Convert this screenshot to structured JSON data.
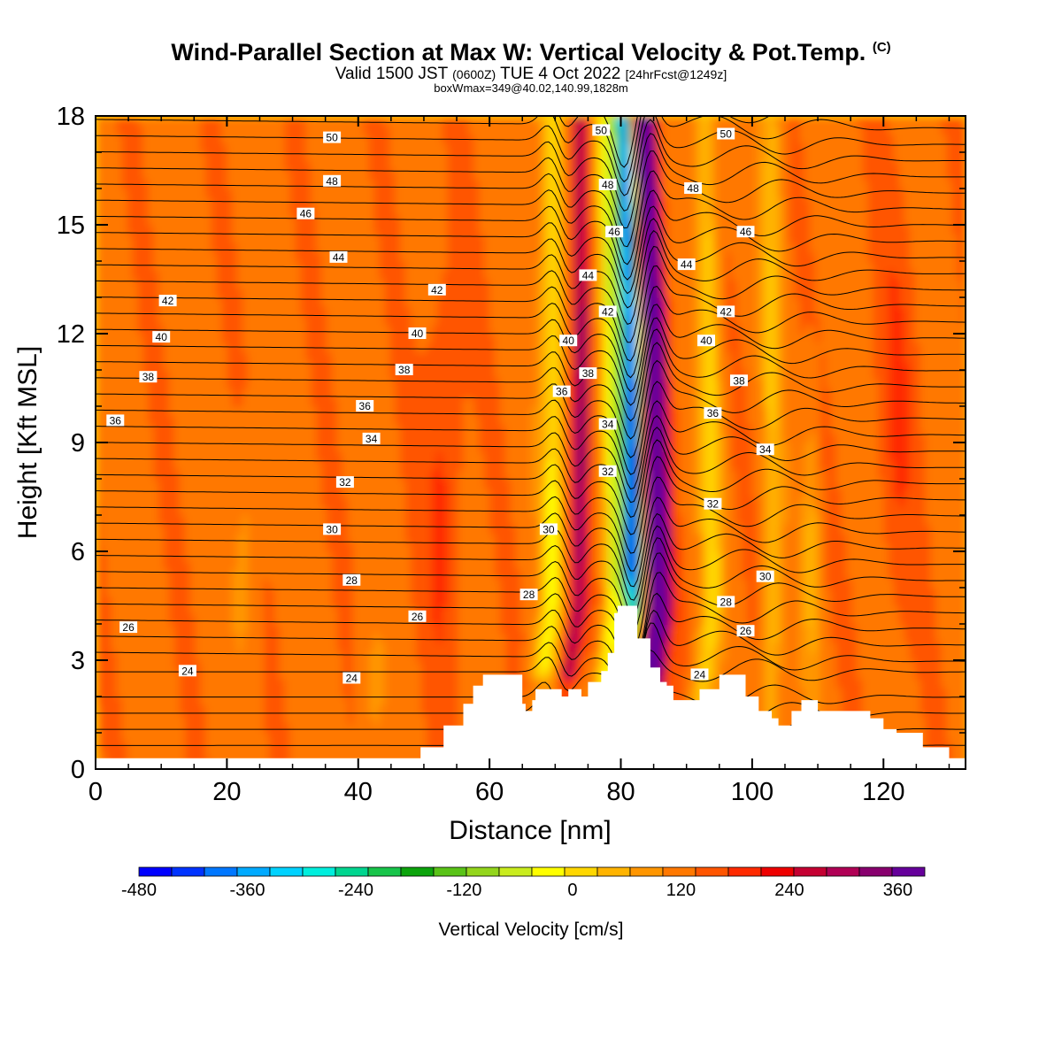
{
  "title": {
    "main": "Wind-Parallel Section at Max W: Vertical Velocity & Pot.Temp.",
    "copyright": "(C)",
    "valid_a": "Valid 1500 JST",
    "valid_b": "(0600Z)",
    "valid_c": "TUE 4 Oct 2022",
    "valid_d": "[24hrFcst@1249z]",
    "box": "boxWmax=349@40.02,140.99,1828m"
  },
  "colors": {
    "bins": [
      "#0000ff",
      "#0033ff",
      "#0077ff",
      "#00aaff",
      "#00d2ff",
      "#00eedd",
      "#00d58f",
      "#18c44a",
      "#0ca40c",
      "#59c317",
      "#93d51c",
      "#c9ec1e",
      "#ffff00",
      "#ffd700",
      "#ffb400",
      "#ff9600",
      "#ff7800",
      "#ff5500",
      "#ff2a00",
      "#ee0000",
      "#c40032",
      "#b00055",
      "#88006e",
      "#66009b"
    ],
    "terrain": "#ffffff",
    "contour": "#000000"
  },
  "chart_data": {
    "type": "heatmap",
    "xlabel": "Distance [nm]",
    "ylabel": "Height [Kft MSL]",
    "xlim": [
      0,
      132.5
    ],
    "ylim": [
      0,
      18
    ],
    "xticks": [
      0,
      20,
      40,
      60,
      80,
      100,
      120
    ],
    "yticks": [
      0,
      3,
      6,
      9,
      12,
      15,
      18
    ],
    "colorbar": {
      "label": "Vertical Velocity [cm/s]",
      "min": -480,
      "max": 390,
      "step": 30,
      "ticks": [
        -480,
        -360,
        -240,
        -120,
        0,
        120,
        240,
        360
      ]
    },
    "theta_contours": {
      "levels_labeled": [
        24,
        26,
        28,
        30,
        32,
        34,
        36,
        38,
        40,
        42,
        44,
        46,
        48,
        50
      ]
    },
    "terrain_profile": {
      "x": [
        0,
        49,
        49.5,
        53,
        56,
        57.5,
        59,
        60,
        64.5,
        65,
        65.5,
        66.5,
        67,
        69,
        71,
        72,
        74,
        75,
        77,
        78,
        79,
        79.5,
        81,
        82.5,
        84.5,
        86,
        87,
        88,
        89,
        92,
        95,
        97,
        99,
        101,
        103,
        104,
        105,
        106,
        107.5,
        108.5,
        110,
        111,
        112,
        116,
        118,
        120,
        122,
        124,
        126,
        128,
        130,
        132.5
      ],
      "height_kft": [
        0.3,
        0.3,
        0.6,
        1.2,
        1.8,
        2.3,
        2.6,
        2.6,
        2.6,
        1.8,
        1.6,
        1.9,
        2.2,
        2.2,
        2.0,
        2.2,
        2.0,
        2.4,
        2.7,
        3.2,
        4.3,
        4.5,
        4.5,
        3.6,
        2.8,
        2.4,
        2.3,
        1.9,
        1.9,
        2.2,
        2.6,
        2.6,
        2.0,
        1.6,
        1.4,
        1.2,
        1.2,
        1.6,
        1.9,
        1.9,
        1.6,
        1.6,
        1.6,
        1.6,
        1.4,
        1.1,
        1.0,
        1.0,
        0.6,
        0.6,
        0.3,
        0.3
      ]
    }
  }
}
